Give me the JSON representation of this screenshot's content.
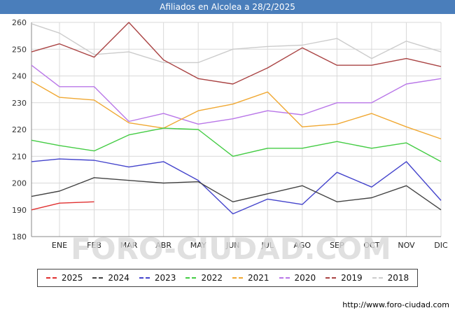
{
  "title": "Afiliados en Alcolea a 28/2/2025",
  "watermark": "FORO-CIUDAD.COM",
  "footer_url": "http://www.foro-ciudad.com",
  "colors": {
    "title_bar": "#4a7ebb",
    "grid": "#d9d9d9",
    "axis": "#888888",
    "tick_text": "#333333",
    "watermark": "#d9d9d9"
  },
  "chart_data": {
    "type": "line",
    "title": "Afiliados en Alcolea a 28/2/2025",
    "categories": [
      "ENE",
      "FEB",
      "MAR",
      "ABR",
      "MAY",
      "JUN",
      "JUL",
      "AGO",
      "SEP",
      "OCT",
      "NOV",
      "DIC"
    ],
    "first_point_at_axis": true,
    "ylim": [
      180,
      260
    ],
    "ytick_step": 10,
    "grid": true,
    "legend_position": "bottom",
    "series": [
      {
        "name": "2025",
        "color": "#e03030",
        "values": [
          190,
          192.5,
          193,
          null,
          null,
          null,
          null,
          null,
          null,
          null,
          null,
          null,
          null
        ]
      },
      {
        "name": "2024",
        "color": "#444444",
        "values": [
          195,
          197,
          202,
          201,
          200,
          200.5,
          193,
          196,
          199,
          193,
          194.5,
          199,
          190
        ]
      },
      {
        "name": "2023",
        "color": "#4444cc",
        "values": [
          208,
          209,
          208.5,
          206,
          208,
          201,
          188.5,
          194,
          192,
          204,
          198.5,
          208,
          193.5
        ]
      },
      {
        "name": "2022",
        "color": "#44cc44",
        "values": [
          216,
          214,
          212,
          218,
          220.5,
          220,
          210,
          213,
          213,
          215.5,
          213,
          215,
          208
        ]
      },
      {
        "name": "2021",
        "color": "#f0a832",
        "values": [
          238,
          232,
          231,
          222.5,
          220.5,
          227,
          229.5,
          234,
          221,
          222,
          226,
          221,
          216.5
        ]
      },
      {
        "name": "2020",
        "color": "#b977e8",
        "values": [
          244,
          236,
          236,
          223,
          226,
          222,
          224,
          227,
          225.5,
          230,
          230,
          237,
          239
        ]
      },
      {
        "name": "2019",
        "color": "#aa4444",
        "values": [
          249,
          252,
          247,
          260,
          246,
          239,
          237,
          243,
          250.5,
          244,
          244,
          246.5,
          243.5
        ]
      },
      {
        "name": "2018",
        "color": "#cccccc",
        "values": [
          259.5,
          256,
          248,
          249,
          245,
          245,
          250,
          251,
          251.5,
          254,
          246.5,
          253,
          249
        ]
      }
    ]
  }
}
